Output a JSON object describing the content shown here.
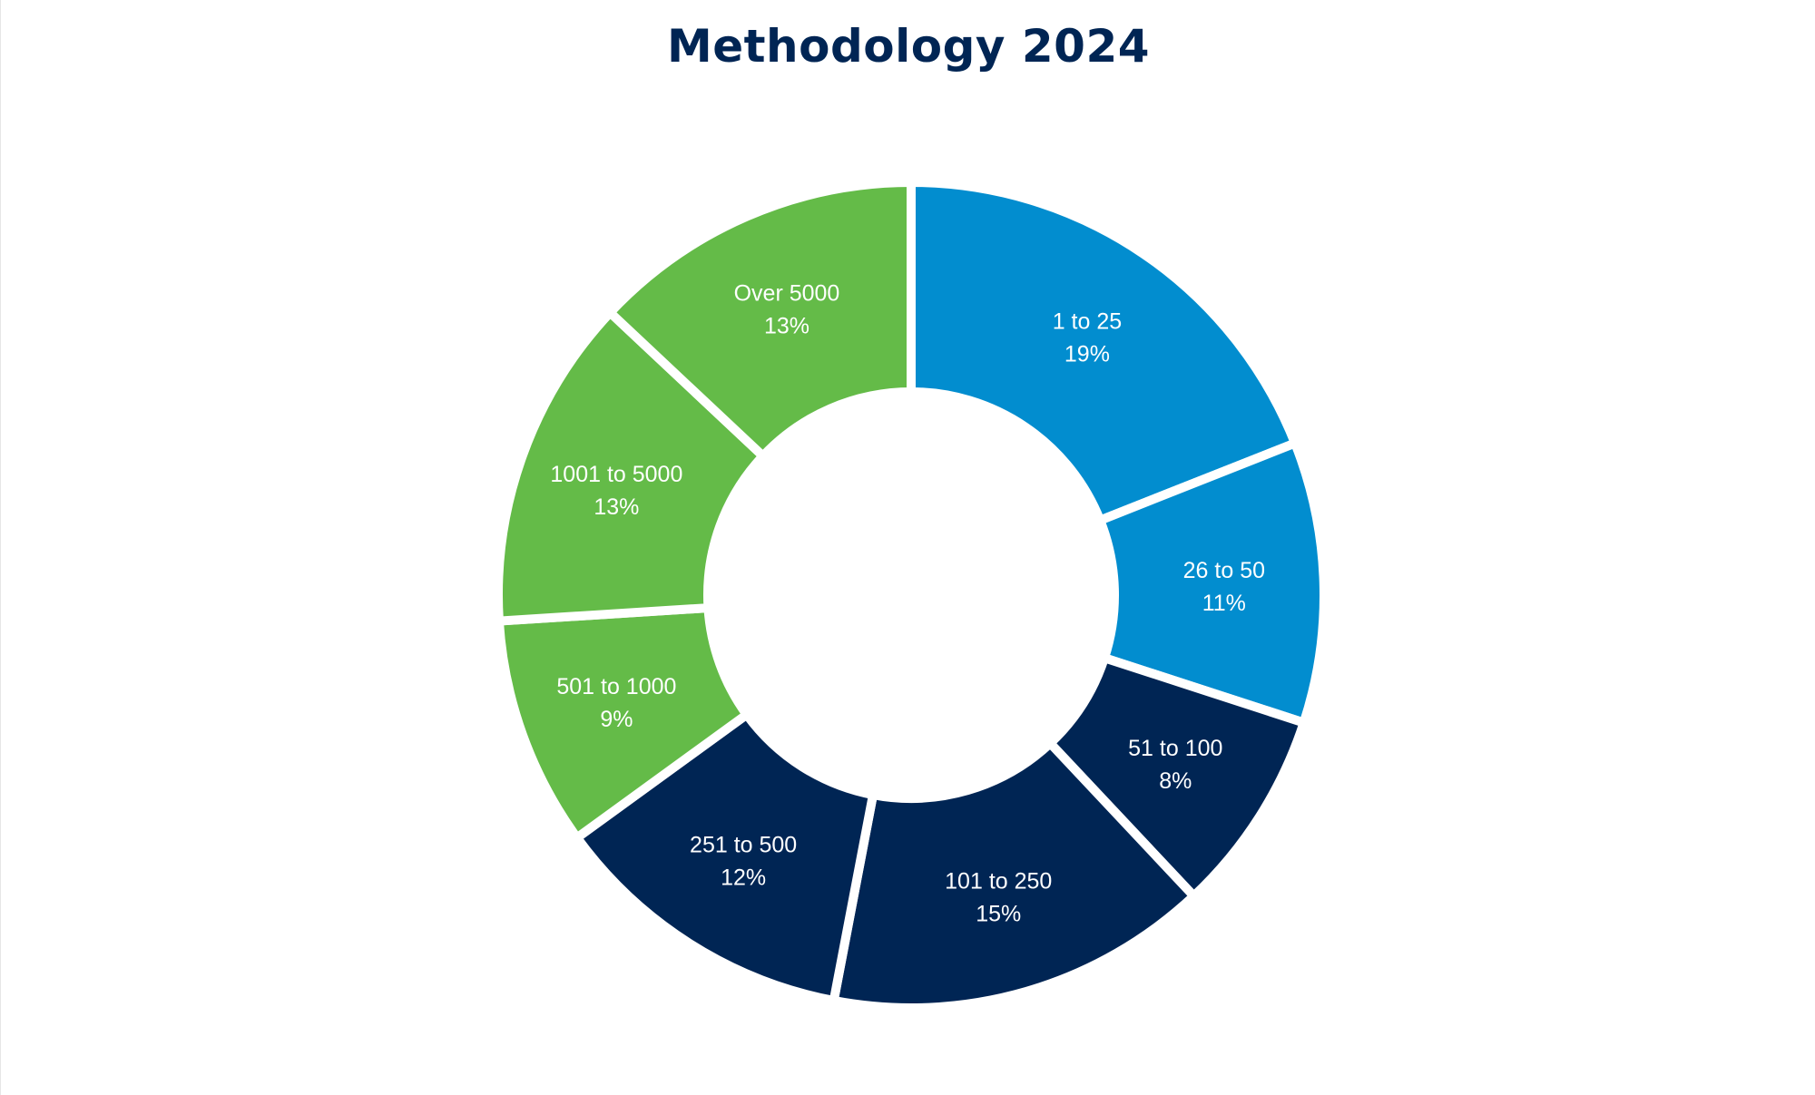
{
  "chart_data": {
    "type": "pie",
    "title": "Methodology 2024",
    "donut": true,
    "legend": "none",
    "slices": [
      {
        "label": "1 to 25",
        "value": 19,
        "value_label": "19%",
        "color": "#028DCF"
      },
      {
        "label": "26 to 50",
        "value": 11,
        "value_label": "11%",
        "color": "#028DCF"
      },
      {
        "label": "51 to 100",
        "value": 8,
        "value_label": "8%",
        "color": "#002554"
      },
      {
        "label": "101 to 250",
        "value": 15,
        "value_label": "15%",
        "color": "#002554"
      },
      {
        "label": "251 to 500",
        "value": 12,
        "value_label": "12%",
        "color": "#002554"
      },
      {
        "label": "501 to 1000",
        "value": 9,
        "value_label": "9%",
        "color": "#64BB48"
      },
      {
        "label": "1001 to 5000",
        "value": 13,
        "value_label": "13%",
        "color": "#64BB48"
      },
      {
        "label": "Over 5000",
        "value": 13,
        "value_label": "13%",
        "color": "#64BB48"
      }
    ]
  }
}
